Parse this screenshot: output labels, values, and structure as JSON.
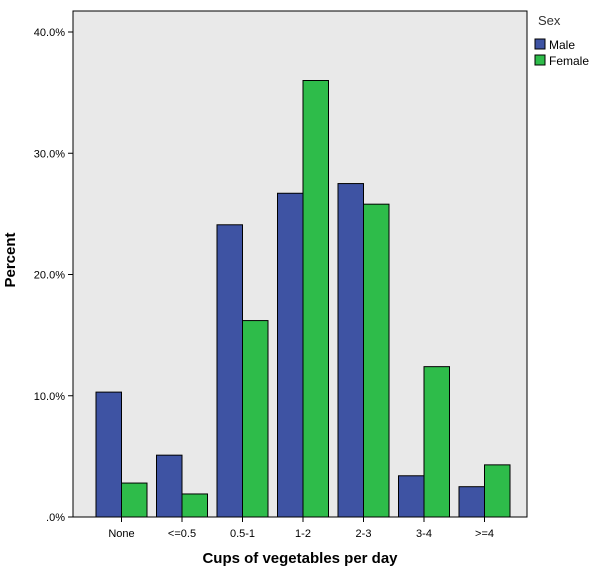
{
  "chart_data": {
    "type": "bar",
    "xlabel": "Cups of vegetables per day",
    "ylabel": "Percent",
    "ylim": [
      0,
      0.43
    ],
    "yticks": [
      0,
      0.1,
      0.2,
      0.3,
      0.4
    ],
    "ytick_labels": [
      ".0%",
      "10.0%",
      "20.0%",
      "30.0%",
      "40.0%"
    ],
    "categories": [
      "None",
      "<=0.5",
      "0.5-1",
      "1-2",
      "2-3",
      "3-4",
      ">=4"
    ],
    "series": [
      {
        "name": "Male",
        "color": "#3e53a3",
        "values": [
          0.103,
          0.051,
          0.241,
          0.267,
          0.275,
          0.034,
          0.025
        ]
      },
      {
        "name": "Female",
        "color": "#2ebc4a",
        "values": [
          0.028,
          0.019,
          0.162,
          0.36,
          0.258,
          0.124,
          0.043
        ]
      }
    ],
    "legend": {
      "title": "Sex",
      "position": "top-right"
    },
    "plot_background": "#e9e9e9",
    "grid": false
  }
}
